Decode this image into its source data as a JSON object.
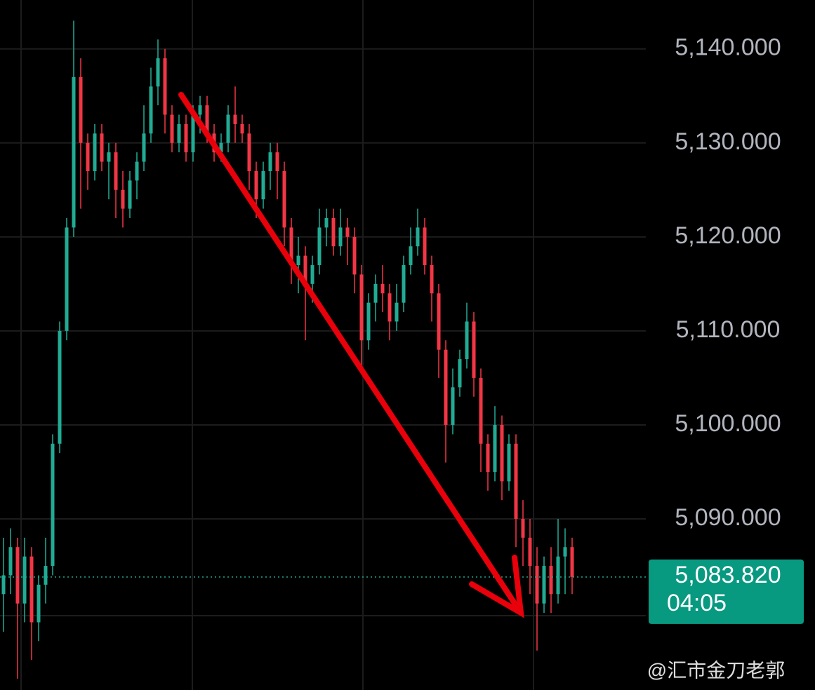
{
  "chart_data": {
    "type": "candlestick",
    "open": [
      5082,
      5084,
      5087,
      5081,
      5086,
      5079,
      5083,
      5085,
      5098,
      5110,
      5121,
      5137,
      5130,
      5127,
      5131,
      5128,
      5129,
      5125,
      5123,
      5126,
      5128,
      5131,
      5136,
      5139,
      5133,
      5130,
      5132,
      5129,
      5133,
      5134,
      5131,
      5129,
      5130,
      5133,
      5132,
      5131,
      5127,
      5124,
      5127,
      5129,
      5127,
      5121,
      5117,
      5118,
      5115,
      5117,
      5121,
      5122,
      5119,
      5121,
      5120,
      5116,
      5109,
      5113,
      5115,
      5114,
      5111,
      5113,
      5117,
      5119,
      5121,
      5117,
      5114,
      5108,
      5100,
      5104,
      5107,
      5111,
      5105,
      5098,
      5095,
      5100,
      5094,
      5098,
      5090,
      5088,
      5085,
      5081,
      5085,
      5082,
      5086,
      5087
    ],
    "high": [
      5088,
      5089,
      5088,
      5088,
      5087,
      5084,
      5088,
      5099,
      5111,
      5122,
      5143,
      5139,
      5131,
      5132,
      5132,
      5130,
      5130,
      5127,
      5127,
      5129,
      5134,
      5138,
      5141,
      5140,
      5134,
      5133,
      5133,
      5134,
      5135,
      5135,
      5132,
      5131,
      5134,
      5136,
      5133,
      5132,
      5128,
      5128,
      5130,
      5130,
      5128,
      5122,
      5120,
      5119,
      5118,
      5123,
      5123,
      5123,
      5123,
      5122,
      5121,
      5117,
      5114,
      5116,
      5117,
      5115,
      5115,
      5118,
      5121,
      5123,
      5122,
      5118,
      5115,
      5109,
      5106,
      5108,
      5113,
      5112,
      5106,
      5099,
      5102,
      5101,
      5099,
      5099,
      5092,
      5090,
      5087,
      5086,
      5087,
      5090,
      5089,
      5088
    ],
    "low": [
      5078,
      5082,
      5073,
      5079,
      5075,
      5077,
      5081,
      5084,
      5097,
      5109,
      5120,
      5123,
      5125,
      5126,
      5127,
      5124,
      5122,
      5121,
      5122,
      5124,
      5127,
      5130,
      5134,
      5131,
      5129,
      5129,
      5128,
      5128,
      5131,
      5130,
      5128,
      5128,
      5129,
      5130,
      5130,
      5125,
      5122,
      5123,
      5125,
      5124,
      5119,
      5115,
      5114,
      5109,
      5113,
      5116,
      5119,
      5118,
      5118,
      5117,
      5114,
      5106,
      5108,
      5111,
      5112,
      5109,
      5110,
      5112,
      5116,
      5118,
      5116,
      5111,
      5105,
      5096,
      5099,
      5103,
      5106,
      5103,
      5095,
      5093,
      5094,
      5092,
      5093,
      5087,
      5085,
      5082,
      5076,
      5080,
      5080,
      5081,
      5082,
      5082
    ],
    "close": [
      5084,
      5087,
      5081,
      5086,
      5079,
      5083,
      5085,
      5098,
      5110,
      5121,
      5137,
      5130,
      5127,
      5131,
      5128,
      5129,
      5125,
      5123,
      5126,
      5128,
      5131,
      5136,
      5139,
      5133,
      5130,
      5132,
      5129,
      5133,
      5134,
      5131,
      5129,
      5130,
      5133,
      5132,
      5131,
      5127,
      5124,
      5127,
      5129,
      5127,
      5121,
      5117,
      5118,
      5115,
      5117,
      5121,
      5122,
      5119,
      5121,
      5120,
      5116,
      5109,
      5113,
      5115,
      5114,
      5111,
      5113,
      5117,
      5119,
      5121,
      5117,
      5114,
      5108,
      5100,
      5104,
      5107,
      5111,
      5105,
      5098,
      5095,
      5100,
      5094,
      5098,
      5090,
      5088,
      5085,
      5081,
      5085,
      5082,
      5086,
      5087,
      5083.82
    ],
    "up_color": "#22ab94",
    "down_color": "#f23645",
    "ylim": [
      5071.8,
      5145.2
    ],
    "yticks": [
      {
        "value": 5090,
        "label": "5,090.000"
      },
      {
        "value": 5100,
        "label": "5,100.000"
      },
      {
        "value": 5110,
        "label": "5,110.000"
      },
      {
        "value": 5120,
        "label": "5,120.000"
      },
      {
        "value": 5130,
        "label": "5,130.000"
      },
      {
        "value": 5140,
        "label": "5,140.000"
      }
    ],
    "grid": true,
    "last_price": {
      "value": 5083.82,
      "label": "5,083.820",
      "countdown": "04:05"
    },
    "watermark": "@汇市金刀老郭"
  }
}
